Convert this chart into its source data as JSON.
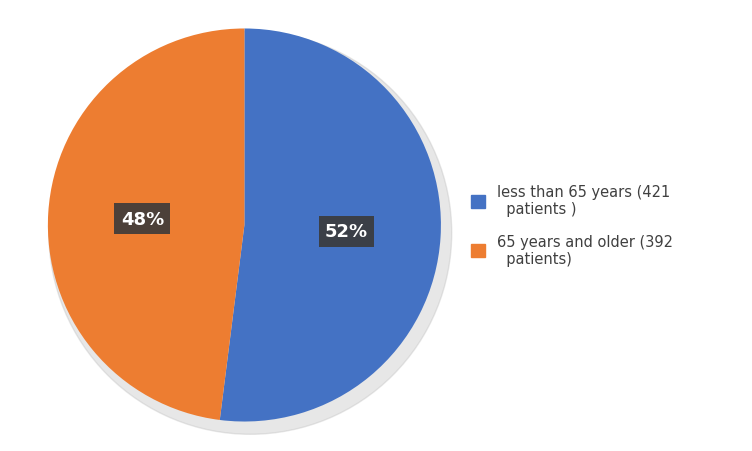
{
  "slices": [
    52,
    48
  ],
  "colors": [
    "#4472C4",
    "#ED7D31"
  ],
  "labels": [
    "less than 65 years (421\n  patients )",
    "65 years and older (392\n  patients)"
  ],
  "pct_labels": [
    "52%",
    "48%"
  ],
  "startangle": 90,
  "background_color": "#ffffff",
  "label_box_color": "#3a3a3a",
  "label_text_color": "#ffffff",
  "legend_text_color": "#404040",
  "shadow_color": "#bbbbbb"
}
